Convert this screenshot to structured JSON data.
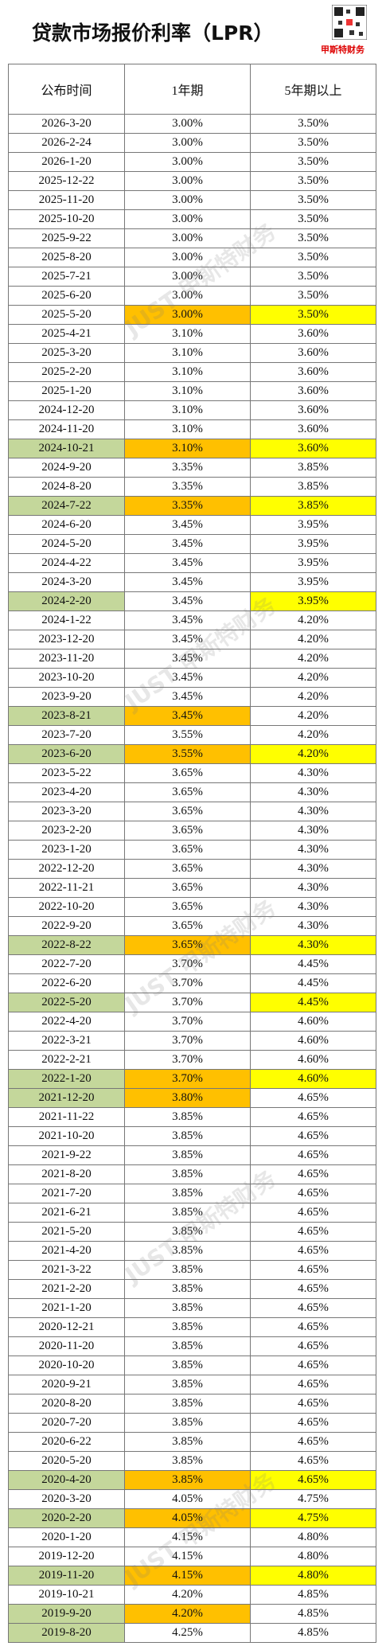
{
  "header": {
    "title": "贷款市场报价利率（LPR）",
    "brand": "甲斯特财务",
    "watermark": "JUST 甲斯特财务"
  },
  "table": {
    "columns": [
      "公布时间",
      "1年期",
      "5年期以上"
    ],
    "highlight_colors": [
      "#c4d79b",
      "#ffc000",
      "#ffff00"
    ],
    "rows": [
      {
        "cells": [
          "2026-3-20",
          "3.00%",
          "3.50%"
        ]
      },
      {
        "cells": [
          "2026-2-24",
          "3.00%",
          "3.50%"
        ]
      },
      {
        "cells": [
          "2026-1-20",
          "3.00%",
          "3.50%"
        ]
      },
      {
        "cells": [
          "2025-12-22",
          "3.00%",
          "3.50%"
        ]
      },
      {
        "cells": [
          "2025-11-20",
          "3.00%",
          "3.50%"
        ]
      },
      {
        "cells": [
          "2025-10-20",
          "3.00%",
          "3.50%"
        ]
      },
      {
        "cells": [
          "2025-9-22",
          "3.00%",
          "3.50%"
        ]
      },
      {
        "cells": [
          "2025-8-20",
          "3.00%",
          "3.50%"
        ]
      },
      {
        "cells": [
          "2025-7-21",
          "3.00%",
          "3.50%"
        ]
      },
      {
        "cells": [
          "2025-6-20",
          "3.00%",
          "3.50%"
        ]
      },
      {
        "cells": [
          "2025-5-20",
          "3.00%",
          "3.50%"
        ],
        "highlight": [
          1,
          2
        ]
      },
      {
        "cells": [
          "2025-4-21",
          "3.10%",
          "3.60%"
        ]
      },
      {
        "cells": [
          "2025-3-20",
          "3.10%",
          "3.60%"
        ]
      },
      {
        "cells": [
          "2025-2-20",
          "3.10%",
          "3.60%"
        ]
      },
      {
        "cells": [
          "2025-1-20",
          "3.10%",
          "3.60%"
        ]
      },
      {
        "cells": [
          "2024-12-20",
          "3.10%",
          "3.60%"
        ]
      },
      {
        "cells": [
          "2024-11-20",
          "3.10%",
          "3.60%"
        ]
      },
      {
        "cells": [
          "2024-10-21",
          "3.10%",
          "3.60%"
        ],
        "highlight": [
          0,
          1,
          2
        ]
      },
      {
        "cells": [
          "2024-9-20",
          "3.35%",
          "3.85%"
        ]
      },
      {
        "cells": [
          "2024-8-20",
          "3.35%",
          "3.85%"
        ]
      },
      {
        "cells": [
          "2024-7-22",
          "3.35%",
          "3.85%"
        ],
        "highlight": [
          0,
          1,
          2
        ]
      },
      {
        "cells": [
          "2024-6-20",
          "3.45%",
          "3.95%"
        ]
      },
      {
        "cells": [
          "2024-5-20",
          "3.45%",
          "3.95%"
        ]
      },
      {
        "cells": [
          "2024-4-22",
          "3.45%",
          "3.95%"
        ]
      },
      {
        "cells": [
          "2024-3-20",
          "3.45%",
          "3.95%"
        ]
      },
      {
        "cells": [
          "2024-2-20",
          "3.45%",
          "3.95%"
        ],
        "highlight": [
          0,
          2
        ]
      },
      {
        "cells": [
          "2024-1-22",
          "3.45%",
          "4.20%"
        ]
      },
      {
        "cells": [
          "2023-12-20",
          "3.45%",
          "4.20%"
        ]
      },
      {
        "cells": [
          "2023-11-20",
          "3.45%",
          "4.20%"
        ]
      },
      {
        "cells": [
          "2023-10-20",
          "3.45%",
          "4.20%"
        ]
      },
      {
        "cells": [
          "2023-9-20",
          "3.45%",
          "4.20%"
        ]
      },
      {
        "cells": [
          "2023-8-21",
          "3.45%",
          "4.20%"
        ],
        "highlight": [
          0,
          1
        ]
      },
      {
        "cells": [
          "2023-7-20",
          "3.55%",
          "4.20%"
        ]
      },
      {
        "cells": [
          "2023-6-20",
          "3.55%",
          "4.20%"
        ],
        "highlight": [
          0,
          1,
          2
        ]
      },
      {
        "cells": [
          "2023-5-22",
          "3.65%",
          "4.30%"
        ]
      },
      {
        "cells": [
          "2023-4-20",
          "3.65%",
          "4.30%"
        ]
      },
      {
        "cells": [
          "2023-3-20",
          "3.65%",
          "4.30%"
        ]
      },
      {
        "cells": [
          "2023-2-20",
          "3.65%",
          "4.30%"
        ]
      },
      {
        "cells": [
          "2023-1-20",
          "3.65%",
          "4.30%"
        ]
      },
      {
        "cells": [
          "2022-12-20",
          "3.65%",
          "4.30%"
        ]
      },
      {
        "cells": [
          "2022-11-21",
          "3.65%",
          "4.30%"
        ]
      },
      {
        "cells": [
          "2022-10-20",
          "3.65%",
          "4.30%"
        ]
      },
      {
        "cells": [
          "2022-9-20",
          "3.65%",
          "4.30%"
        ]
      },
      {
        "cells": [
          "2022-8-22",
          "3.65%",
          "4.30%"
        ],
        "highlight": [
          0,
          1,
          2
        ]
      },
      {
        "cells": [
          "2022-7-20",
          "3.70%",
          "4.45%"
        ]
      },
      {
        "cells": [
          "2022-6-20",
          "3.70%",
          "4.45%"
        ]
      },
      {
        "cells": [
          "2022-5-20",
          "3.70%",
          "4.45%"
        ],
        "highlight": [
          0,
          2
        ]
      },
      {
        "cells": [
          "2022-4-20",
          "3.70%",
          "4.60%"
        ]
      },
      {
        "cells": [
          "2022-3-21",
          "3.70%",
          "4.60%"
        ]
      },
      {
        "cells": [
          "2022-2-21",
          "3.70%",
          "4.60%"
        ]
      },
      {
        "cells": [
          "2022-1-20",
          "3.70%",
          "4.60%"
        ],
        "highlight": [
          0,
          1,
          2
        ]
      },
      {
        "cells": [
          "2021-12-20",
          "3.80%",
          "4.65%"
        ],
        "highlight": [
          0,
          1
        ]
      },
      {
        "cells": [
          "2021-11-22",
          "3.85%",
          "4.65%"
        ]
      },
      {
        "cells": [
          "2021-10-20",
          "3.85%",
          "4.65%"
        ]
      },
      {
        "cells": [
          "2021-9-22",
          "3.85%",
          "4.65%"
        ]
      },
      {
        "cells": [
          "2021-8-20",
          "3.85%",
          "4.65%"
        ]
      },
      {
        "cells": [
          "2021-7-20",
          "3.85%",
          "4.65%"
        ]
      },
      {
        "cells": [
          "2021-6-21",
          "3.85%",
          "4.65%"
        ]
      },
      {
        "cells": [
          "2021-5-20",
          "3.85%",
          "4.65%"
        ]
      },
      {
        "cells": [
          "2021-4-20",
          "3.85%",
          "4.65%"
        ]
      },
      {
        "cells": [
          "2021-3-22",
          "3.85%",
          "4.65%"
        ]
      },
      {
        "cells": [
          "2021-2-20",
          "3.85%",
          "4.65%"
        ]
      },
      {
        "cells": [
          "2021-1-20",
          "3.85%",
          "4.65%"
        ]
      },
      {
        "cells": [
          "2020-12-21",
          "3.85%",
          "4.65%"
        ]
      },
      {
        "cells": [
          "2020-11-20",
          "3.85%",
          "4.65%"
        ]
      },
      {
        "cells": [
          "2020-10-20",
          "3.85%",
          "4.65%"
        ]
      },
      {
        "cells": [
          "2020-9-21",
          "3.85%",
          "4.65%"
        ]
      },
      {
        "cells": [
          "2020-8-20",
          "3.85%",
          "4.65%"
        ]
      },
      {
        "cells": [
          "2020-7-20",
          "3.85%",
          "4.65%"
        ]
      },
      {
        "cells": [
          "2020-6-22",
          "3.85%",
          "4.65%"
        ]
      },
      {
        "cells": [
          "2020-5-20",
          "3.85%",
          "4.65%"
        ]
      },
      {
        "cells": [
          "2020-4-20",
          "3.85%",
          "4.65%"
        ],
        "highlight": [
          0,
          1,
          2
        ]
      },
      {
        "cells": [
          "2020-3-20",
          "4.05%",
          "4.75%"
        ]
      },
      {
        "cells": [
          "2020-2-20",
          "4.05%",
          "4.75%"
        ],
        "highlight": [
          0,
          1,
          2
        ]
      },
      {
        "cells": [
          "2020-1-20",
          "4.15%",
          "4.80%"
        ]
      },
      {
        "cells": [
          "2019-12-20",
          "4.15%",
          "4.80%"
        ]
      },
      {
        "cells": [
          "2019-11-20",
          "4.15%",
          "4.80%"
        ],
        "highlight": [
          0,
          1,
          2
        ]
      },
      {
        "cells": [
          "2019-10-21",
          "4.20%",
          "4.85%"
        ]
      },
      {
        "cells": [
          "2019-9-20",
          "4.20%",
          "4.85%"
        ],
        "highlight": [
          0,
          1
        ]
      },
      {
        "cells": [
          "2019-8-20",
          "4.25%",
          "4.85%"
        ],
        "highlight": [
          0
        ]
      }
    ]
  }
}
